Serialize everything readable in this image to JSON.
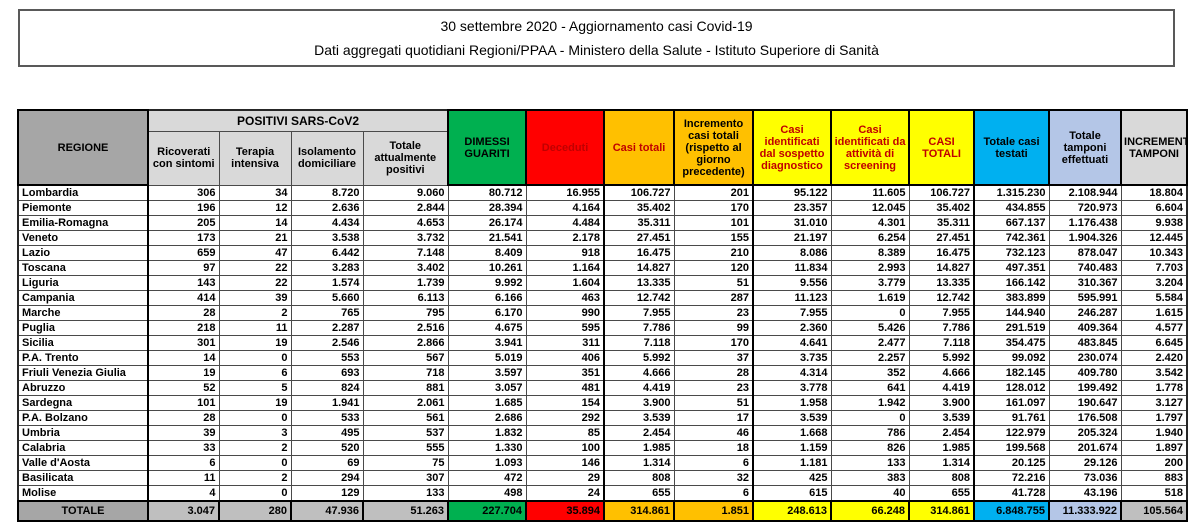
{
  "header": {
    "line1": "30 settembre 2020 - Aggiornamento casi Covid-19",
    "line2": "Dati aggregati quotidiani Regioni/PPAA - Ministero della Salute - Istituto Superiore di Sanità"
  },
  "table": {
    "region_header": "REGIONE",
    "region_header_bg": "#A6A6A6",
    "group_header": "POSITIVI SARS-CoV2",
    "group_header_bg": "#D9D9D9",
    "columns": [
      {
        "key": "ricoverati_con_sintomi",
        "label": "Ricoverati con sintomi",
        "bg": "#D9D9D9",
        "fg": "#000000",
        "total_bg": "#BFBFBF"
      },
      {
        "key": "terapia_intensiva",
        "label": "Terapia intensiva",
        "bg": "#D9D9D9",
        "fg": "#000000",
        "total_bg": "#BFBFBF"
      },
      {
        "key": "isolamento_domiciliare",
        "label": "Isolamento domiciliare",
        "bg": "#D9D9D9",
        "fg": "#000000",
        "total_bg": "#BFBFBF"
      },
      {
        "key": "totale_attualmente_positivi",
        "label": "Totale attualmente positivi",
        "bg": "#D9D9D9",
        "fg": "#000000",
        "total_bg": "#BFBFBF"
      },
      {
        "key": "dimessi_guariti",
        "label": "DIMESSI GUARITI",
        "bg": "#00B050",
        "fg": "#000000",
        "total_bg": "#00B050"
      },
      {
        "key": "deceduti",
        "label": "Deceduti",
        "bg": "#FF0000",
        "fg": "#C00000",
        "total_bg": "#FF0000"
      },
      {
        "key": "casi_totali",
        "label": "Casi totali",
        "bg": "#FFC000",
        "fg": "#C00000",
        "total_bg": "#FFC000"
      },
      {
        "key": "incremento_casi_totali",
        "label": "Incremento casi totali (rispetto al giorno precedente)",
        "bg": "#FFC000",
        "fg": "#000000",
        "total_bg": "#FFC000"
      },
      {
        "key": "casi_sospetto_diagnostico",
        "label": "Casi identificati dal sospetto diagnostico",
        "bg": "#FFFF00",
        "fg": "#C00000",
        "total_bg": "#FFFF00"
      },
      {
        "key": "casi_screening",
        "label": "Casi identificati da attività di screening",
        "bg": "#FFFF00",
        "fg": "#C00000",
        "total_bg": "#FFFF00"
      },
      {
        "key": "casi_totali_complessivi",
        "label": "CASI TOTALI",
        "bg": "#FFFF00",
        "fg": "#C00000",
        "total_bg": "#FFFF00"
      },
      {
        "key": "totale_casi_testati",
        "label": "Totale casi testati",
        "bg": "#00B0F0",
        "fg": "#000000",
        "total_bg": "#00B0F0"
      },
      {
        "key": "totale_tamponi_effettuati",
        "label": "Totale tamponi effettuati",
        "bg": "#B4C6E7",
        "fg": "#000000",
        "total_bg": "#B4C6E7"
      },
      {
        "key": "incremento_tamponi",
        "label": "INCREMENTO TAMPONI",
        "bg": "#D9D9D9",
        "fg": "#000000",
        "total_bg": "#BFBFBF"
      }
    ],
    "rows": [
      {
        "region": "Lombardia",
        "values": [
          "306",
          "34",
          "8.720",
          "9.060",
          "80.712",
          "16.955",
          "106.727",
          "201",
          "95.122",
          "11.605",
          "106.727",
          "1.315.230",
          "2.108.944",
          "18.804"
        ]
      },
      {
        "region": "Piemonte",
        "values": [
          "196",
          "12",
          "2.636",
          "2.844",
          "28.394",
          "4.164",
          "35.402",
          "170",
          "23.357",
          "12.045",
          "35.402",
          "434.855",
          "720.973",
          "6.604"
        ]
      },
      {
        "region": "Emilia-Romagna",
        "values": [
          "205",
          "14",
          "4.434",
          "4.653",
          "26.174",
          "4.484",
          "35.311",
          "101",
          "31.010",
          "4.301",
          "35.311",
          "667.137",
          "1.176.438",
          "9.938"
        ]
      },
      {
        "region": "Veneto",
        "values": [
          "173",
          "21",
          "3.538",
          "3.732",
          "21.541",
          "2.178",
          "27.451",
          "155",
          "21.197",
          "6.254",
          "27.451",
          "742.361",
          "1.904.326",
          "12.445"
        ]
      },
      {
        "region": "Lazio",
        "values": [
          "659",
          "47",
          "6.442",
          "7.148",
          "8.409",
          "918",
          "16.475",
          "210",
          "8.086",
          "8.389",
          "16.475",
          "732.123",
          "878.047",
          "10.343"
        ]
      },
      {
        "region": "Toscana",
        "values": [
          "97",
          "22",
          "3.283",
          "3.402",
          "10.261",
          "1.164",
          "14.827",
          "120",
          "11.834",
          "2.993",
          "14.827",
          "497.351",
          "740.483",
          "7.703"
        ]
      },
      {
        "region": "Liguria",
        "values": [
          "143",
          "22",
          "1.574",
          "1.739",
          "9.992",
          "1.604",
          "13.335",
          "51",
          "9.556",
          "3.779",
          "13.335",
          "166.142",
          "310.367",
          "3.204"
        ]
      },
      {
        "region": "Campania",
        "values": [
          "414",
          "39",
          "5.660",
          "6.113",
          "6.166",
          "463",
          "12.742",
          "287",
          "11.123",
          "1.619",
          "12.742",
          "383.899",
          "595.991",
          "5.584"
        ]
      },
      {
        "region": "Marche",
        "values": [
          "28",
          "2",
          "765",
          "795",
          "6.170",
          "990",
          "7.955",
          "23",
          "7.955",
          "0",
          "7.955",
          "144.940",
          "246.287",
          "1.615"
        ]
      },
      {
        "region": "Puglia",
        "values": [
          "218",
          "11",
          "2.287",
          "2.516",
          "4.675",
          "595",
          "7.786",
          "99",
          "2.360",
          "5.426",
          "7.786",
          "291.519",
          "409.364",
          "4.577"
        ]
      },
      {
        "region": "Sicilia",
        "values": [
          "301",
          "19",
          "2.546",
          "2.866",
          "3.941",
          "311",
          "7.118",
          "170",
          "4.641",
          "2.477",
          "7.118",
          "354.475",
          "483.845",
          "6.645"
        ]
      },
      {
        "region": "P.A. Trento",
        "values": [
          "14",
          "0",
          "553",
          "567",
          "5.019",
          "406",
          "5.992",
          "37",
          "3.735",
          "2.257",
          "5.992",
          "99.092",
          "230.074",
          "2.420"
        ]
      },
      {
        "region": "Friuli Venezia Giulia",
        "values": [
          "19",
          "6",
          "693",
          "718",
          "3.597",
          "351",
          "4.666",
          "28",
          "4.314",
          "352",
          "4.666",
          "182.145",
          "409.780",
          "3.542"
        ]
      },
      {
        "region": "Abruzzo",
        "values": [
          "52",
          "5",
          "824",
          "881",
          "3.057",
          "481",
          "4.419",
          "23",
          "3.778",
          "641",
          "4.419",
          "128.012",
          "199.492",
          "1.778"
        ]
      },
      {
        "region": "Sardegna",
        "values": [
          "101",
          "19",
          "1.941",
          "2.061",
          "1.685",
          "154",
          "3.900",
          "51",
          "1.958",
          "1.942",
          "3.900",
          "161.097",
          "190.647",
          "3.127"
        ]
      },
      {
        "region": "P.A. Bolzano",
        "values": [
          "28",
          "0",
          "533",
          "561",
          "2.686",
          "292",
          "3.539",
          "17",
          "3.539",
          "0",
          "3.539",
          "91.761",
          "176.508",
          "1.797"
        ]
      },
      {
        "region": "Umbria",
        "values": [
          "39",
          "3",
          "495",
          "537",
          "1.832",
          "85",
          "2.454",
          "46",
          "1.668",
          "786",
          "2.454",
          "122.979",
          "205.324",
          "1.940"
        ]
      },
      {
        "region": "Calabria",
        "values": [
          "33",
          "2",
          "520",
          "555",
          "1.330",
          "100",
          "1.985",
          "18",
          "1.159",
          "826",
          "1.985",
          "199.568",
          "201.674",
          "1.897"
        ]
      },
      {
        "region": "Valle d'Aosta",
        "values": [
          "6",
          "0",
          "69",
          "75",
          "1.093",
          "146",
          "1.314",
          "6",
          "1.181",
          "133",
          "1.314",
          "20.125",
          "29.126",
          "200"
        ]
      },
      {
        "region": "Basilicata",
        "values": [
          "11",
          "2",
          "294",
          "307",
          "472",
          "29",
          "808",
          "32",
          "425",
          "383",
          "808",
          "72.216",
          "73.036",
          "883"
        ]
      },
      {
        "region": "Molise",
        "values": [
          "4",
          "0",
          "129",
          "133",
          "498",
          "24",
          "655",
          "6",
          "615",
          "40",
          "655",
          "41.728",
          "43.196",
          "518"
        ]
      }
    ],
    "total": {
      "region": "TOTALE",
      "region_bg": "#A6A6A6",
      "values": [
        "3.047",
        "280",
        "47.936",
        "51.263",
        "227.704",
        "35.894",
        "314.861",
        "1.851",
        "248.613",
        "66.248",
        "314.861",
        "6.848.755",
        "11.333.922",
        "105.564"
      ]
    }
  }
}
